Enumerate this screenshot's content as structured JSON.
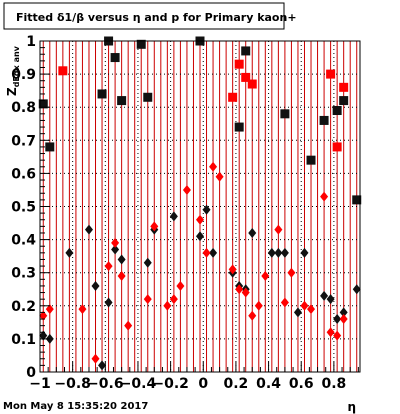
{
  "footer": {
    "datestamp": "Mon May  8 15:35:20 2017"
  },
  "chart_data": {
    "type": "scatter",
    "title": "Fitted δ1/β versus η and p for Primary kaon+",
    "xlabel": "η",
    "ylabel": "Z_{dEdx anv}",
    "xlim": [
      -1.0,
      0.96
    ],
    "ylim": [
      0,
      1.0
    ],
    "x_ticks": [
      -1,
      -0.8,
      -0.6,
      -0.4,
      -0.2,
      0,
      0.2,
      0.4,
      0.6,
      0.8
    ],
    "x_tick_labels": [
      "−1",
      "−0.8",
      "−0.6",
      "−0.4",
      "−0.2",
      "0",
      "0.2",
      "0.4",
      "0.6",
      "0.8"
    ],
    "y_ticks": [
      0,
      0.1,
      0.2,
      0.3,
      0.4,
      0.5,
      0.6,
      0.7,
      0.8,
      0.9,
      1
    ],
    "y_tick_labels": [
      "0",
      "0.1",
      "0.2",
      "0.3",
      "0.4",
      "0.5",
      "0.6",
      "0.7",
      "0.8",
      "0.9",
      "1"
    ],
    "grid": "dotted",
    "vertical_lines_x": [
      -0.98,
      -0.94,
      -0.9,
      -0.86,
      -0.82,
      -0.78,
      -0.74,
      -0.7,
      -0.66,
      -0.62,
      -0.58,
      -0.54,
      -0.5,
      -0.46,
      -0.42,
      -0.38,
      -0.34,
      -0.3,
      -0.26,
      -0.22,
      -0.18,
      -0.14,
      -0.1,
      -0.06,
      -0.02,
      0.02,
      0.06,
      0.1,
      0.14,
      0.18,
      0.22,
      0.26,
      0.3,
      0.34,
      0.38,
      0.42,
      0.46,
      0.5,
      0.54,
      0.58,
      0.62,
      0.66,
      0.7,
      0.74,
      0.78,
      0.82,
      0.86,
      0.9,
      0.94
    ],
    "vertical_lines_color": "#cc0000",
    "series": [
      {
        "marker": "square",
        "color": "#111111",
        "points": [
          [
            -0.98,
            0.81
          ],
          [
            -0.94,
            0.68
          ],
          [
            -0.62,
            0.84
          ],
          [
            -0.58,
            1.0
          ],
          [
            -0.54,
            0.95
          ],
          [
            -0.5,
            0.82
          ],
          [
            -0.38,
            0.99
          ],
          [
            -0.34,
            0.83
          ],
          [
            -0.02,
            1.0
          ],
          [
            0.22,
            0.74
          ],
          [
            0.26,
            0.97
          ],
          [
            0.5,
            0.78
          ],
          [
            0.66,
            0.64
          ],
          [
            0.74,
            0.76
          ],
          [
            0.82,
            0.79
          ],
          [
            0.86,
            0.82
          ],
          [
            0.94,
            0.52
          ]
        ]
      },
      {
        "marker": "square",
        "color": "#ff0000",
        "points": [
          [
            -0.86,
            0.91
          ],
          [
            0.18,
            0.83
          ],
          [
            0.22,
            0.93
          ],
          [
            0.26,
            0.89
          ],
          [
            0.3,
            0.87
          ],
          [
            0.78,
            0.9
          ],
          [
            0.82,
            0.68
          ],
          [
            0.86,
            0.86
          ]
        ]
      },
      {
        "marker": "diamond",
        "color": "#111111",
        "points": [
          [
            -0.98,
            0.11
          ],
          [
            -0.94,
            0.1
          ],
          [
            -0.82,
            0.36
          ],
          [
            -0.7,
            0.43
          ],
          [
            -0.66,
            0.26
          ],
          [
            -0.62,
            0.02
          ],
          [
            -0.58,
            0.21
          ],
          [
            -0.54,
            0.37
          ],
          [
            -0.5,
            0.34
          ],
          [
            -0.34,
            0.33
          ],
          [
            -0.3,
            0.43
          ],
          [
            -0.18,
            0.47
          ],
          [
            -0.02,
            0.41
          ],
          [
            0.02,
            0.49
          ],
          [
            0.06,
            0.36
          ],
          [
            0.18,
            0.3
          ],
          [
            0.22,
            0.26
          ],
          [
            0.26,
            0.25
          ],
          [
            0.3,
            0.42
          ],
          [
            0.42,
            0.36
          ],
          [
            0.46,
            0.36
          ],
          [
            0.5,
            0.36
          ],
          [
            0.58,
            0.18
          ],
          [
            0.62,
            0.36
          ],
          [
            0.74,
            0.23
          ],
          [
            0.78,
            0.22
          ],
          [
            0.82,
            0.16
          ],
          [
            0.86,
            0.18
          ],
          [
            0.94,
            0.25
          ]
        ]
      },
      {
        "marker": "diamond",
        "color": "#ff0000",
        "points": [
          [
            -0.98,
            0.17
          ],
          [
            -0.94,
            0.19
          ],
          [
            -0.74,
            0.19
          ],
          [
            -0.66,
            0.04
          ],
          [
            -0.58,
            0.32
          ],
          [
            -0.54,
            0.39
          ],
          [
            -0.5,
            0.29
          ],
          [
            -0.46,
            0.14
          ],
          [
            -0.34,
            0.22
          ],
          [
            -0.3,
            0.44
          ],
          [
            -0.22,
            0.2
          ],
          [
            -0.18,
            0.22
          ],
          [
            -0.14,
            0.26
          ],
          [
            -0.1,
            0.55
          ],
          [
            -0.02,
            0.46
          ],
          [
            0.02,
            0.36
          ],
          [
            0.06,
            0.62
          ],
          [
            0.1,
            0.59
          ],
          [
            0.18,
            0.31
          ],
          [
            0.22,
            0.25
          ],
          [
            0.26,
            0.24
          ],
          [
            0.3,
            0.17
          ],
          [
            0.34,
            0.2
          ],
          [
            0.38,
            0.29
          ],
          [
            0.46,
            0.43
          ],
          [
            0.5,
            0.21
          ],
          [
            0.54,
            0.3
          ],
          [
            0.62,
            0.2
          ],
          [
            0.66,
            0.19
          ],
          [
            0.74,
            0.53
          ],
          [
            0.78,
            0.12
          ],
          [
            0.82,
            0.11
          ],
          [
            0.86,
            0.16
          ]
        ]
      }
    ]
  }
}
